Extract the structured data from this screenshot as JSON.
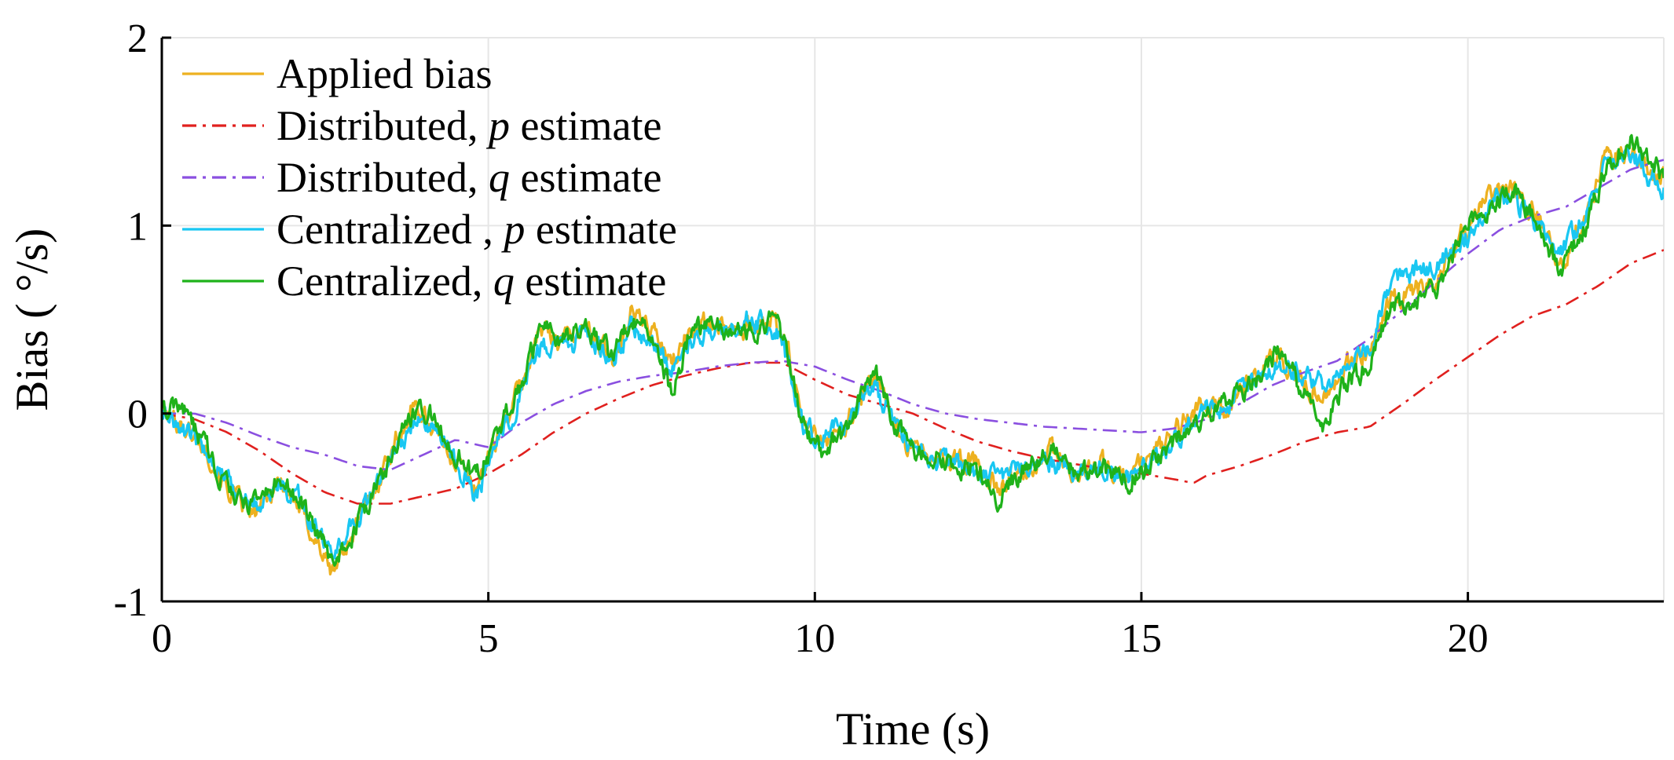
{
  "chart_data": {
    "type": "line",
    "title": "",
    "xlabel": "Time (s)",
    "ylabel": "Bias ( °/s)",
    "xlim": [
      0,
      23
    ],
    "ylim": [
      -1,
      2
    ],
    "xticks": [
      0,
      5,
      10,
      15,
      20
    ],
    "yticks": [
      -1,
      0,
      1,
      2
    ],
    "xtick_labels": [
      "0",
      "5",
      "10",
      "15",
      "20"
    ],
    "ytick_labels": [
      "-1",
      "0",
      "1",
      "2"
    ],
    "grid": true,
    "legend_position": "top-left",
    "series": [
      {
        "name": "Applied bias",
        "legend": {
          "pre": "Applied bias",
          "var": "",
          "post": ""
        },
        "color": "#EDB120",
        "dash": "solid",
        "noisy": true,
        "x": [
          0,
          0.3,
          0.7,
          1.0,
          1.4,
          1.8,
          2.1,
          2.4,
          2.6,
          2.9,
          3.2,
          3.5,
          3.9,
          4.2,
          4.5,
          4.8,
          5.1,
          5.5,
          5.8,
          6.1,
          6.5,
          6.9,
          7.2,
          7.5,
          7.8,
          8.1,
          8.5,
          9.0,
          9.4,
          9.6,
          9.8,
          10.1,
          10.5,
          10.9,
          11.2,
          11.5,
          12.0,
          12.5,
          12.8,
          13.2,
          13.6,
          14.0,
          14.4,
          14.8,
          15.2,
          15.5,
          15.9,
          16.3,
          16.7,
          17.1,
          17.5,
          17.8,
          18.1,
          18.5,
          18.8,
          19.2,
          19.6,
          20.0,
          20.3,
          20.7,
          21.1,
          21.4,
          21.8,
          22.1,
          22.5,
          22.8,
          23.0
        ],
        "values": [
          0.0,
          -0.05,
          -0.2,
          -0.4,
          -0.55,
          -0.35,
          -0.5,
          -0.7,
          -0.85,
          -0.65,
          -0.45,
          -0.2,
          0.05,
          -0.1,
          -0.25,
          -0.4,
          -0.15,
          0.15,
          0.45,
          0.4,
          0.45,
          0.3,
          0.55,
          0.45,
          0.25,
          0.45,
          0.5,
          0.45,
          0.5,
          0.3,
          -0.05,
          -0.15,
          -0.05,
          0.2,
          -0.05,
          -0.2,
          -0.25,
          -0.25,
          -0.4,
          -0.3,
          -0.2,
          -0.35,
          -0.25,
          -0.35,
          -0.2,
          -0.1,
          0.05,
          0.0,
          0.2,
          0.3,
          0.15,
          0.1,
          0.25,
          0.35,
          0.6,
          0.65,
          0.75,
          1.0,
          1.15,
          1.2,
          1.05,
          0.8,
          1.05,
          1.35,
          1.4,
          1.3,
          1.25
        ]
      },
      {
        "name": "Distributed, p estimate",
        "legend": {
          "pre": "Distributed, ",
          "var": "p",
          "post": " estimate"
        },
        "color": "#E0201E",
        "dash": "dashdot",
        "noisy": false,
        "x": [
          0,
          0.5,
          1.0,
          1.5,
          2.0,
          2.5,
          3.0,
          3.5,
          4.0,
          4.5,
          5.0,
          5.5,
          6.0,
          6.5,
          7.0,
          7.5,
          8.0,
          8.5,
          9.0,
          9.5,
          10.0,
          10.5,
          11.0,
          11.5,
          12.0,
          12.5,
          13.0,
          13.5,
          14.0,
          14.5,
          15.0,
          15.5,
          15.8,
          16.0,
          16.5,
          17.0,
          17.5,
          18.0,
          18.5,
          19.0,
          19.5,
          20.0,
          20.5,
          21.0,
          21.5,
          22.0,
          22.5,
          23.0
        ],
        "values": [
          0.0,
          -0.03,
          -0.1,
          -0.2,
          -0.32,
          -0.42,
          -0.48,
          -0.48,
          -0.44,
          -0.4,
          -0.32,
          -0.22,
          -0.1,
          0.0,
          0.08,
          0.15,
          0.2,
          0.24,
          0.27,
          0.27,
          0.18,
          0.1,
          0.05,
          0.0,
          -0.08,
          -0.15,
          -0.2,
          -0.24,
          -0.27,
          -0.3,
          -0.32,
          -0.35,
          -0.37,
          -0.33,
          -0.28,
          -0.22,
          -0.15,
          -0.1,
          -0.07,
          0.05,
          0.18,
          0.3,
          0.42,
          0.52,
          0.58,
          0.68,
          0.8,
          0.87
        ]
      },
      {
        "name": "Distributed, q estimate",
        "legend": {
          "pre": "Distributed, ",
          "var": "q",
          "post": " estimate"
        },
        "color": "#8A4FE0",
        "dash": "dashdot",
        "noisy": false,
        "x": [
          0,
          0.5,
          1.0,
          1.5,
          2.0,
          2.5,
          3.0,
          3.5,
          4.0,
          4.5,
          5.0,
          5.5,
          6.0,
          6.5,
          7.0,
          7.5,
          8.0,
          8.5,
          9.0,
          9.5,
          10.0,
          10.5,
          11.0,
          11.5,
          12.0,
          12.5,
          13.0,
          13.5,
          14.0,
          14.5,
          15.0,
          15.5,
          16.0,
          16.5,
          17.0,
          17.5,
          18.0,
          18.5,
          19.0,
          19.5,
          20.0,
          20.5,
          21.0,
          21.5,
          22.0,
          22.5,
          23.0
        ],
        "values": [
          0.0,
          0.0,
          -0.05,
          -0.12,
          -0.18,
          -0.22,
          -0.28,
          -0.3,
          -0.22,
          -0.14,
          -0.18,
          -0.05,
          0.05,
          0.12,
          0.17,
          0.2,
          0.22,
          0.25,
          0.27,
          0.28,
          0.25,
          0.18,
          0.12,
          0.05,
          0.0,
          -0.03,
          -0.05,
          -0.07,
          -0.08,
          -0.09,
          -0.1,
          -0.08,
          -0.03,
          0.05,
          0.15,
          0.22,
          0.28,
          0.4,
          0.55,
          0.7,
          0.85,
          0.98,
          1.05,
          1.1,
          1.2,
          1.3,
          1.35
        ]
      },
      {
        "name": "Centralized , p estimate",
        "legend": {
          "pre": "Centralized , ",
          "var": "p",
          "post": " estimate"
        },
        "color": "#19C7F2",
        "dash": "solid",
        "noisy": true,
        "x": [
          0,
          0.3,
          0.7,
          1.0,
          1.4,
          1.8,
          2.1,
          2.4,
          2.6,
          2.9,
          3.2,
          3.5,
          3.9,
          4.2,
          4.5,
          4.8,
          5.1,
          5.5,
          5.8,
          6.1,
          6.5,
          6.9,
          7.2,
          7.5,
          7.8,
          8.1,
          8.5,
          9.0,
          9.4,
          9.6,
          9.8,
          10.1,
          10.5,
          10.9,
          11.2,
          11.5,
          12.0,
          12.5,
          12.8,
          13.2,
          13.6,
          14.0,
          14.4,
          14.8,
          15.2,
          15.5,
          15.9,
          16.3,
          16.7,
          17.1,
          17.5,
          17.8,
          18.1,
          18.5,
          18.8,
          19.2,
          19.6,
          20.0,
          20.3,
          20.7,
          21.1,
          21.4,
          21.8,
          22.1,
          22.5,
          22.8,
          23.0
        ],
        "values": [
          0.0,
          -0.08,
          -0.2,
          -0.35,
          -0.5,
          -0.38,
          -0.45,
          -0.65,
          -0.75,
          -0.6,
          -0.45,
          -0.25,
          0.0,
          -0.1,
          -0.25,
          -0.45,
          -0.2,
          0.1,
          0.35,
          0.35,
          0.4,
          0.3,
          0.45,
          0.4,
          0.25,
          0.4,
          0.45,
          0.5,
          0.45,
          0.25,
          -0.05,
          -0.15,
          -0.05,
          0.15,
          -0.05,
          -0.2,
          -0.25,
          -0.3,
          -0.35,
          -0.3,
          -0.25,
          -0.3,
          -0.3,
          -0.35,
          -0.25,
          -0.15,
          0.0,
          0.05,
          0.15,
          0.25,
          0.2,
          0.15,
          0.25,
          0.35,
          0.7,
          0.75,
          0.8,
          0.95,
          1.1,
          1.15,
          1.0,
          0.85,
          1.05,
          1.3,
          1.4,
          1.25,
          1.2
        ]
      },
      {
        "name": "Centralized, q estimate",
        "legend": {
          "pre": "Centralized, ",
          "var": "q",
          "post": " estimate"
        },
        "color": "#1FB21A",
        "dash": "solid",
        "noisy": true,
        "x": [
          0,
          0.3,
          0.7,
          1.0,
          1.4,
          1.8,
          2.1,
          2.4,
          2.6,
          2.9,
          3.2,
          3.5,
          3.9,
          4.2,
          4.5,
          4.8,
          5.1,
          5.5,
          5.8,
          6.1,
          6.5,
          6.9,
          7.2,
          7.5,
          7.8,
          8.1,
          8.5,
          9.0,
          9.4,
          9.6,
          9.8,
          10.1,
          10.5,
          10.9,
          11.2,
          11.5,
          12.0,
          12.5,
          12.8,
          13.2,
          13.6,
          14.0,
          14.4,
          14.8,
          15.2,
          15.5,
          15.9,
          16.3,
          16.7,
          17.1,
          17.5,
          17.8,
          18.1,
          18.5,
          18.8,
          19.2,
          19.6,
          20.0,
          20.3,
          20.7,
          21.1,
          21.4,
          21.8,
          22.1,
          22.5,
          22.8,
          23.0
        ],
        "values": [
          0.0,
          0.05,
          -0.2,
          -0.4,
          -0.5,
          -0.35,
          -0.45,
          -0.65,
          -0.8,
          -0.65,
          -0.45,
          -0.25,
          0.05,
          -0.05,
          -0.2,
          -0.35,
          -0.15,
          0.15,
          0.45,
          0.4,
          0.45,
          0.3,
          0.5,
          0.45,
          0.1,
          0.45,
          0.45,
          0.45,
          0.5,
          0.3,
          -0.05,
          -0.2,
          -0.1,
          0.25,
          -0.05,
          -0.2,
          -0.25,
          -0.3,
          -0.45,
          -0.3,
          -0.2,
          -0.3,
          -0.3,
          -0.35,
          -0.25,
          -0.15,
          -0.05,
          0.05,
          0.15,
          0.35,
          0.1,
          -0.05,
          0.15,
          0.25,
          0.55,
          0.6,
          0.7,
          1.0,
          1.1,
          1.2,
          1.0,
          0.75,
          1.0,
          1.3,
          1.45,
          1.35,
          1.25
        ]
      }
    ]
  }
}
